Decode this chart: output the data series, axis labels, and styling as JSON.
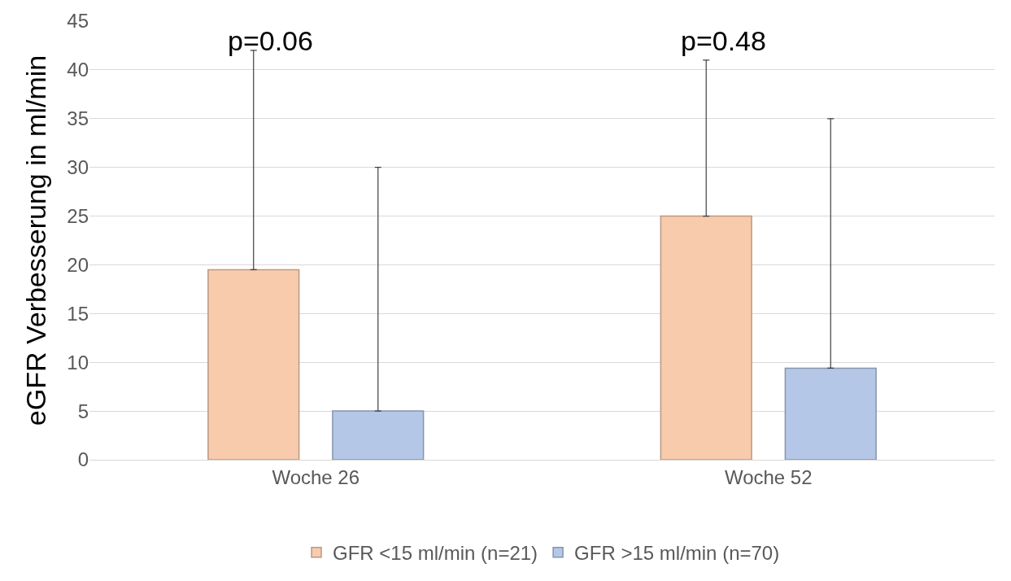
{
  "chart_data": {
    "type": "bar",
    "ylabel": "eGFR Verbesserung in ml/min",
    "categories": [
      "Woche 26",
      "Woche 52"
    ],
    "series": [
      {
        "name": "GFR <15 ml/min (n=21)",
        "color": "#f8cbad",
        "values": [
          19.5,
          25
        ],
        "errors": [
          [
            19.5,
            42
          ],
          [
            25,
            41
          ]
        ]
      },
      {
        "name": "GFR >15 ml/min (n=70)",
        "color": "#b4c7e7",
        "values": [
          5,
          9.4
        ],
        "errors": [
          [
            5,
            30
          ],
          [
            9.4,
            35
          ]
        ]
      }
    ],
    "annotations": [
      "p=0.06",
      "p=0.48"
    ],
    "ylim": [
      0,
      45
    ],
    "yticks": [
      0,
      5,
      10,
      15,
      20,
      25,
      30,
      35,
      40,
      45
    ],
    "grid": "y",
    "legend": "bottom"
  }
}
